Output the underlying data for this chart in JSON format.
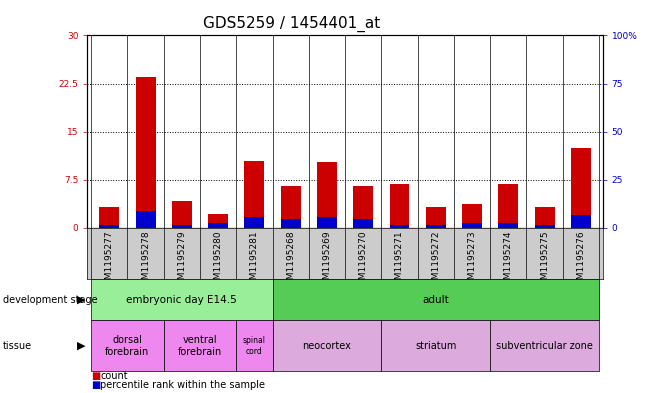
{
  "title": "GDS5259 / 1454401_at",
  "samples": [
    "GSM1195277",
    "GSM1195278",
    "GSM1195279",
    "GSM1195280",
    "GSM1195281",
    "GSM1195268",
    "GSM1195269",
    "GSM1195270",
    "GSM1195271",
    "GSM1195272",
    "GSM1195273",
    "GSM1195274",
    "GSM1195275",
    "GSM1195276"
  ],
  "count_values": [
    3.2,
    23.5,
    4.2,
    2.2,
    10.5,
    6.5,
    10.2,
    6.5,
    6.8,
    3.2,
    3.8,
    6.8,
    3.2,
    12.5
  ],
  "percentile_values": [
    1.5,
    9.0,
    1.5,
    2.5,
    5.5,
    4.5,
    5.5,
    4.5,
    1.5,
    1.5,
    2.5,
    2.5,
    1.5,
    6.5
  ],
  "count_color": "#cc0000",
  "percentile_color": "#0000cc",
  "ylim_left": [
    0,
    30
  ],
  "ylim_right": [
    0,
    100
  ],
  "yticks_left": [
    0,
    7.5,
    15,
    22.5,
    30
  ],
  "ytick_labels_left": [
    "0",
    "7.5",
    "15",
    "22.5",
    "30"
  ],
  "yticks_right": [
    0,
    25,
    50,
    75,
    100
  ],
  "ytick_labels_right": [
    "0",
    "25",
    "50",
    "75",
    "100%"
  ],
  "dev_stage_groups": [
    {
      "label": "embryonic day E14.5",
      "start": 0,
      "end": 4,
      "color": "#99ee99"
    },
    {
      "label": "adult",
      "start": 5,
      "end": 13,
      "color": "#55cc55"
    }
  ],
  "tissue_groups": [
    {
      "label": "dorsal\nforebrain",
      "start": 0,
      "end": 1,
      "color": "#ee88ee"
    },
    {
      "label": "ventral\nforebrain",
      "start": 2,
      "end": 3,
      "color": "#ee88ee"
    },
    {
      "label": "spinal\ncord",
      "start": 4,
      "end": 4,
      "color": "#ee88ee"
    },
    {
      "label": "neocortex",
      "start": 5,
      "end": 7,
      "color": "#ddaadd"
    },
    {
      "label": "striatum",
      "start": 8,
      "end": 10,
      "color": "#ddaadd"
    },
    {
      "label": "subventricular zone",
      "start": 11,
      "end": 13,
      "color": "#ddaadd"
    }
  ],
  "title_fontsize": 11,
  "tick_fontsize": 6.5,
  "label_fontsize": 7.5,
  "annot_fontsize": 7,
  "xticklabel_area_color": "#cccccc"
}
